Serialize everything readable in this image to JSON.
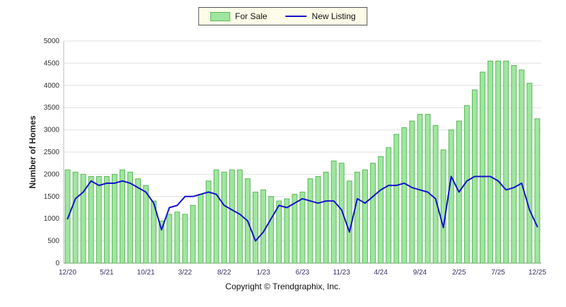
{
  "legend": {
    "items": [
      {
        "label": "For Sale",
        "swatch": "bar"
      },
      {
        "label": "New Listing",
        "swatch": "line"
      }
    ]
  },
  "footer": {
    "text": "Copyright © Trendgraphix, Inc."
  },
  "chart_data": {
    "type": "bar+line",
    "title": "",
    "ylabel": "Number of Homes",
    "ylim": [
      0,
      5000
    ],
    "y_step": 500,
    "n_points": 61,
    "grid": "horizontal",
    "legend_position": "top-center",
    "x_ticks": [
      {
        "index": 0,
        "label": "12/20"
      },
      {
        "index": 5,
        "label": "5/21"
      },
      {
        "index": 10,
        "label": "10/21"
      },
      {
        "index": 15,
        "label": "3/22"
      },
      {
        "index": 20,
        "label": "8/22"
      },
      {
        "index": 25,
        "label": "1/23"
      },
      {
        "index": 30,
        "label": "6/23"
      },
      {
        "index": 35,
        "label": "11/23"
      },
      {
        "index": 40,
        "label": "4/24"
      },
      {
        "index": 45,
        "label": "9/24"
      },
      {
        "index": 50,
        "label": "2/25"
      },
      {
        "index": 55,
        "label": "7/25"
      },
      {
        "index": 60,
        "label": "12/25"
      }
    ],
    "series": [
      {
        "name": "For Sale",
        "type": "bar",
        "color": "#9fe69f",
        "border": "#5cb85c",
        "values": [
          2100,
          2050,
          2000,
          1950,
          1950,
          1950,
          2000,
          2100,
          2050,
          1900,
          1750,
          1400,
          950,
          1100,
          1150,
          1100,
          1300,
          1550,
          1850,
          2100,
          2050,
          2100,
          2100,
          1900,
          1600,
          1650,
          1500,
          1400,
          1450,
          1550,
          1600,
          1900,
          1950,
          2050,
          2300,
          2250,
          1850,
          2050,
          2100,
          2250,
          2400,
          2600,
          2900,
          3050,
          3200,
          3350,
          3350,
          3100,
          2550,
          3000,
          3200,
          3550,
          3900,
          4300,
          4550,
          4550,
          4550,
          4450,
          4350,
          4050,
          3250
        ]
      },
      {
        "name": "New Listing",
        "type": "line",
        "color": "#1414cc",
        "values": [
          1000,
          1450,
          1600,
          1850,
          1750,
          1800,
          1800,
          1850,
          1800,
          1700,
          1600,
          1350,
          750,
          1250,
          1300,
          1500,
          1500,
          1550,
          1600,
          1550,
          1300,
          1200,
          1100,
          950,
          500,
          700,
          1000,
          1300,
          1250,
          1350,
          1450,
          1400,
          1350,
          1400,
          1400,
          1200,
          700,
          1450,
          1350,
          1500,
          1650,
          1750,
          1750,
          1800,
          1700,
          1650,
          1600,
          1450,
          800,
          1950,
          1600,
          1850,
          1950,
          1950,
          1950,
          1850,
          1650,
          1700,
          1800,
          1200,
          820
        ]
      }
    ]
  }
}
